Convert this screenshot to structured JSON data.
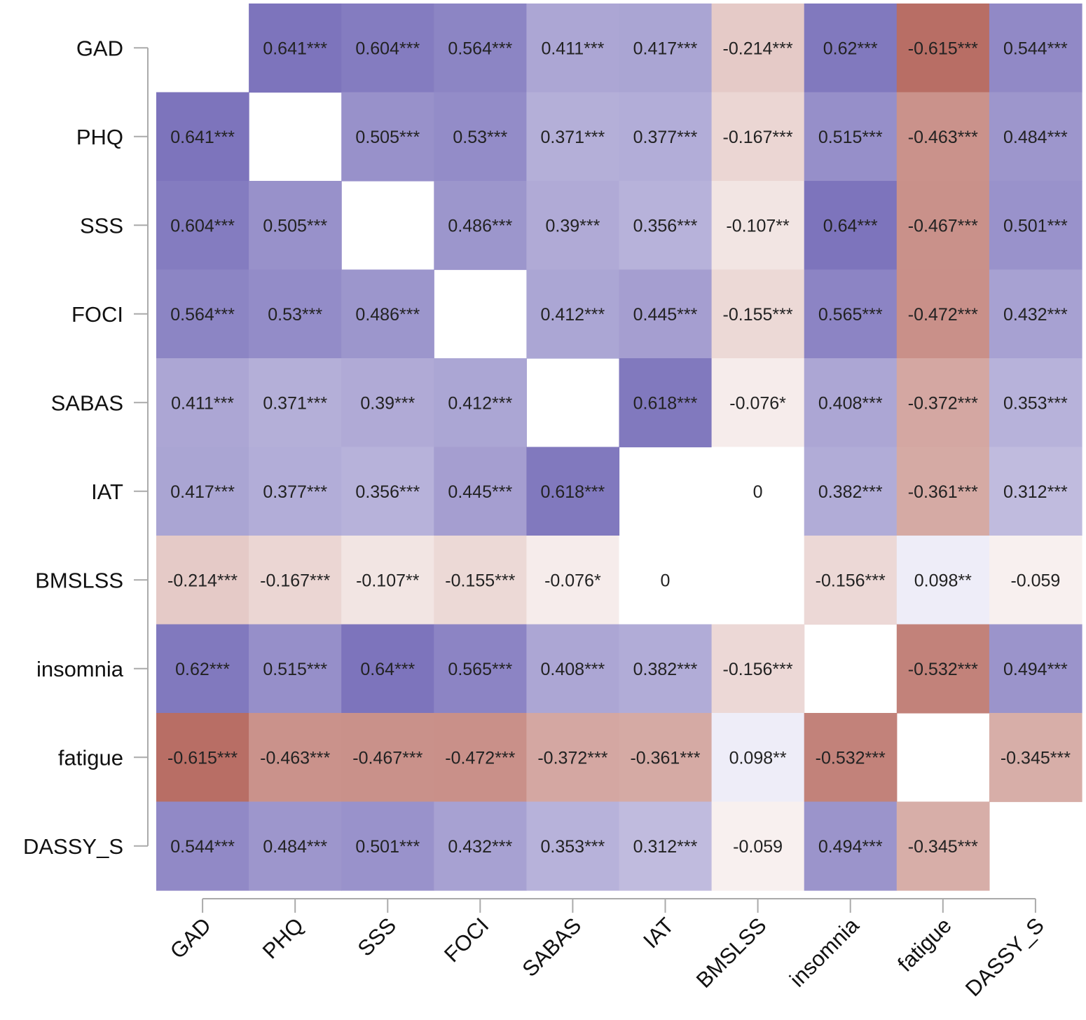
{
  "chart_data": {
    "type": "heatmap",
    "title": "",
    "xlabel": "",
    "ylabel": "",
    "variables": [
      "GAD",
      "PHQ",
      "SSS",
      "FOCI",
      "SABAS",
      "IAT",
      "BMSLSS",
      "insomnia",
      "fatigue",
      "DASSY_S"
    ],
    "values": [
      [
        null,
        0.641,
        0.604,
        0.564,
        0.411,
        0.417,
        -0.214,
        0.62,
        -0.615,
        0.544
      ],
      [
        0.641,
        null,
        0.505,
        0.53,
        0.371,
        0.377,
        -0.167,
        0.515,
        -0.463,
        0.484
      ],
      [
        0.604,
        0.505,
        null,
        0.486,
        0.39,
        0.356,
        -0.107,
        0.64,
        -0.467,
        0.501
      ],
      [
        0.564,
        0.53,
        0.486,
        null,
        0.412,
        0.445,
        -0.155,
        0.565,
        -0.472,
        0.432
      ],
      [
        0.411,
        0.371,
        0.39,
        0.412,
        null,
        0.618,
        -0.076,
        0.408,
        -0.372,
        0.353
      ],
      [
        0.417,
        0.377,
        0.356,
        0.445,
        0.618,
        null,
        0,
        0.382,
        -0.361,
        0.312
      ],
      [
        -0.214,
        -0.167,
        -0.107,
        -0.155,
        -0.076,
        0,
        null,
        -0.156,
        0.098,
        -0.059
      ],
      [
        0.62,
        0.515,
        0.64,
        0.565,
        0.408,
        0.382,
        -0.156,
        null,
        -0.532,
        0.494
      ],
      [
        -0.615,
        -0.463,
        -0.467,
        -0.472,
        -0.372,
        -0.361,
        0.098,
        -0.532,
        null,
        -0.345
      ],
      [
        0.544,
        0.484,
        0.501,
        0.432,
        0.353,
        0.312,
        -0.059,
        0.494,
        -0.345,
        null
      ]
    ],
    "labels": [
      [
        "",
        "0.641***",
        "0.604***",
        "0.564***",
        "0.411***",
        "0.417***",
        "-0.214***",
        "0.62***",
        "-0.615***",
        "0.544***"
      ],
      [
        "0.641***",
        "",
        "0.505***",
        "0.53***",
        "0.371***",
        "0.377***",
        "-0.167***",
        "0.515***",
        "-0.463***",
        "0.484***"
      ],
      [
        "0.604***",
        "0.505***",
        "",
        "0.486***",
        "0.39***",
        "0.356***",
        "-0.107**",
        "0.64***",
        "-0.467***",
        "0.501***"
      ],
      [
        "0.564***",
        "0.53***",
        "0.486***",
        "",
        "0.412***",
        "0.445***",
        "-0.155***",
        "0.565***",
        "-0.472***",
        "0.432***"
      ],
      [
        "0.411***",
        "0.371***",
        "0.39***",
        "0.412***",
        "",
        "0.618***",
        "-0.076*",
        "0.408***",
        "-0.372***",
        "0.353***"
      ],
      [
        "0.417***",
        "0.377***",
        "0.356***",
        "0.445***",
        "0.618***",
        "",
        "0",
        "0.382***",
        "-0.361***",
        "0.312***"
      ],
      [
        "-0.214***",
        "-0.167***",
        "-0.107**",
        "-0.155***",
        "-0.076*",
        "0",
        "",
        "-0.156***",
        "0.098**",
        "-0.059"
      ],
      [
        "0.62***",
        "0.515***",
        "0.64***",
        "0.565***",
        "0.408***",
        "0.382***",
        "-0.156***",
        "",
        "-0.532***",
        "0.494***"
      ],
      [
        "-0.615***",
        "-0.463***",
        "-0.467***",
        "-0.472***",
        "-0.372***",
        "-0.361***",
        "0.098**",
        "-0.532***",
        "",
        "-0.345***"
      ],
      [
        "0.544***",
        "0.484***",
        "0.501***",
        "0.432***",
        "0.353***",
        "0.312***",
        "-0.059",
        "0.494***",
        "-0.345***",
        ""
      ]
    ],
    "color_scale": {
      "domain": [
        -0.65,
        0,
        0.65
      ],
      "negative_color": "#b4665c",
      "zero_color": "#ffffff",
      "positive_color": "#7b72bb",
      "positive_sign_low_tint": "#ecebf7"
    },
    "diagonal": "blank",
    "legend": "none"
  }
}
